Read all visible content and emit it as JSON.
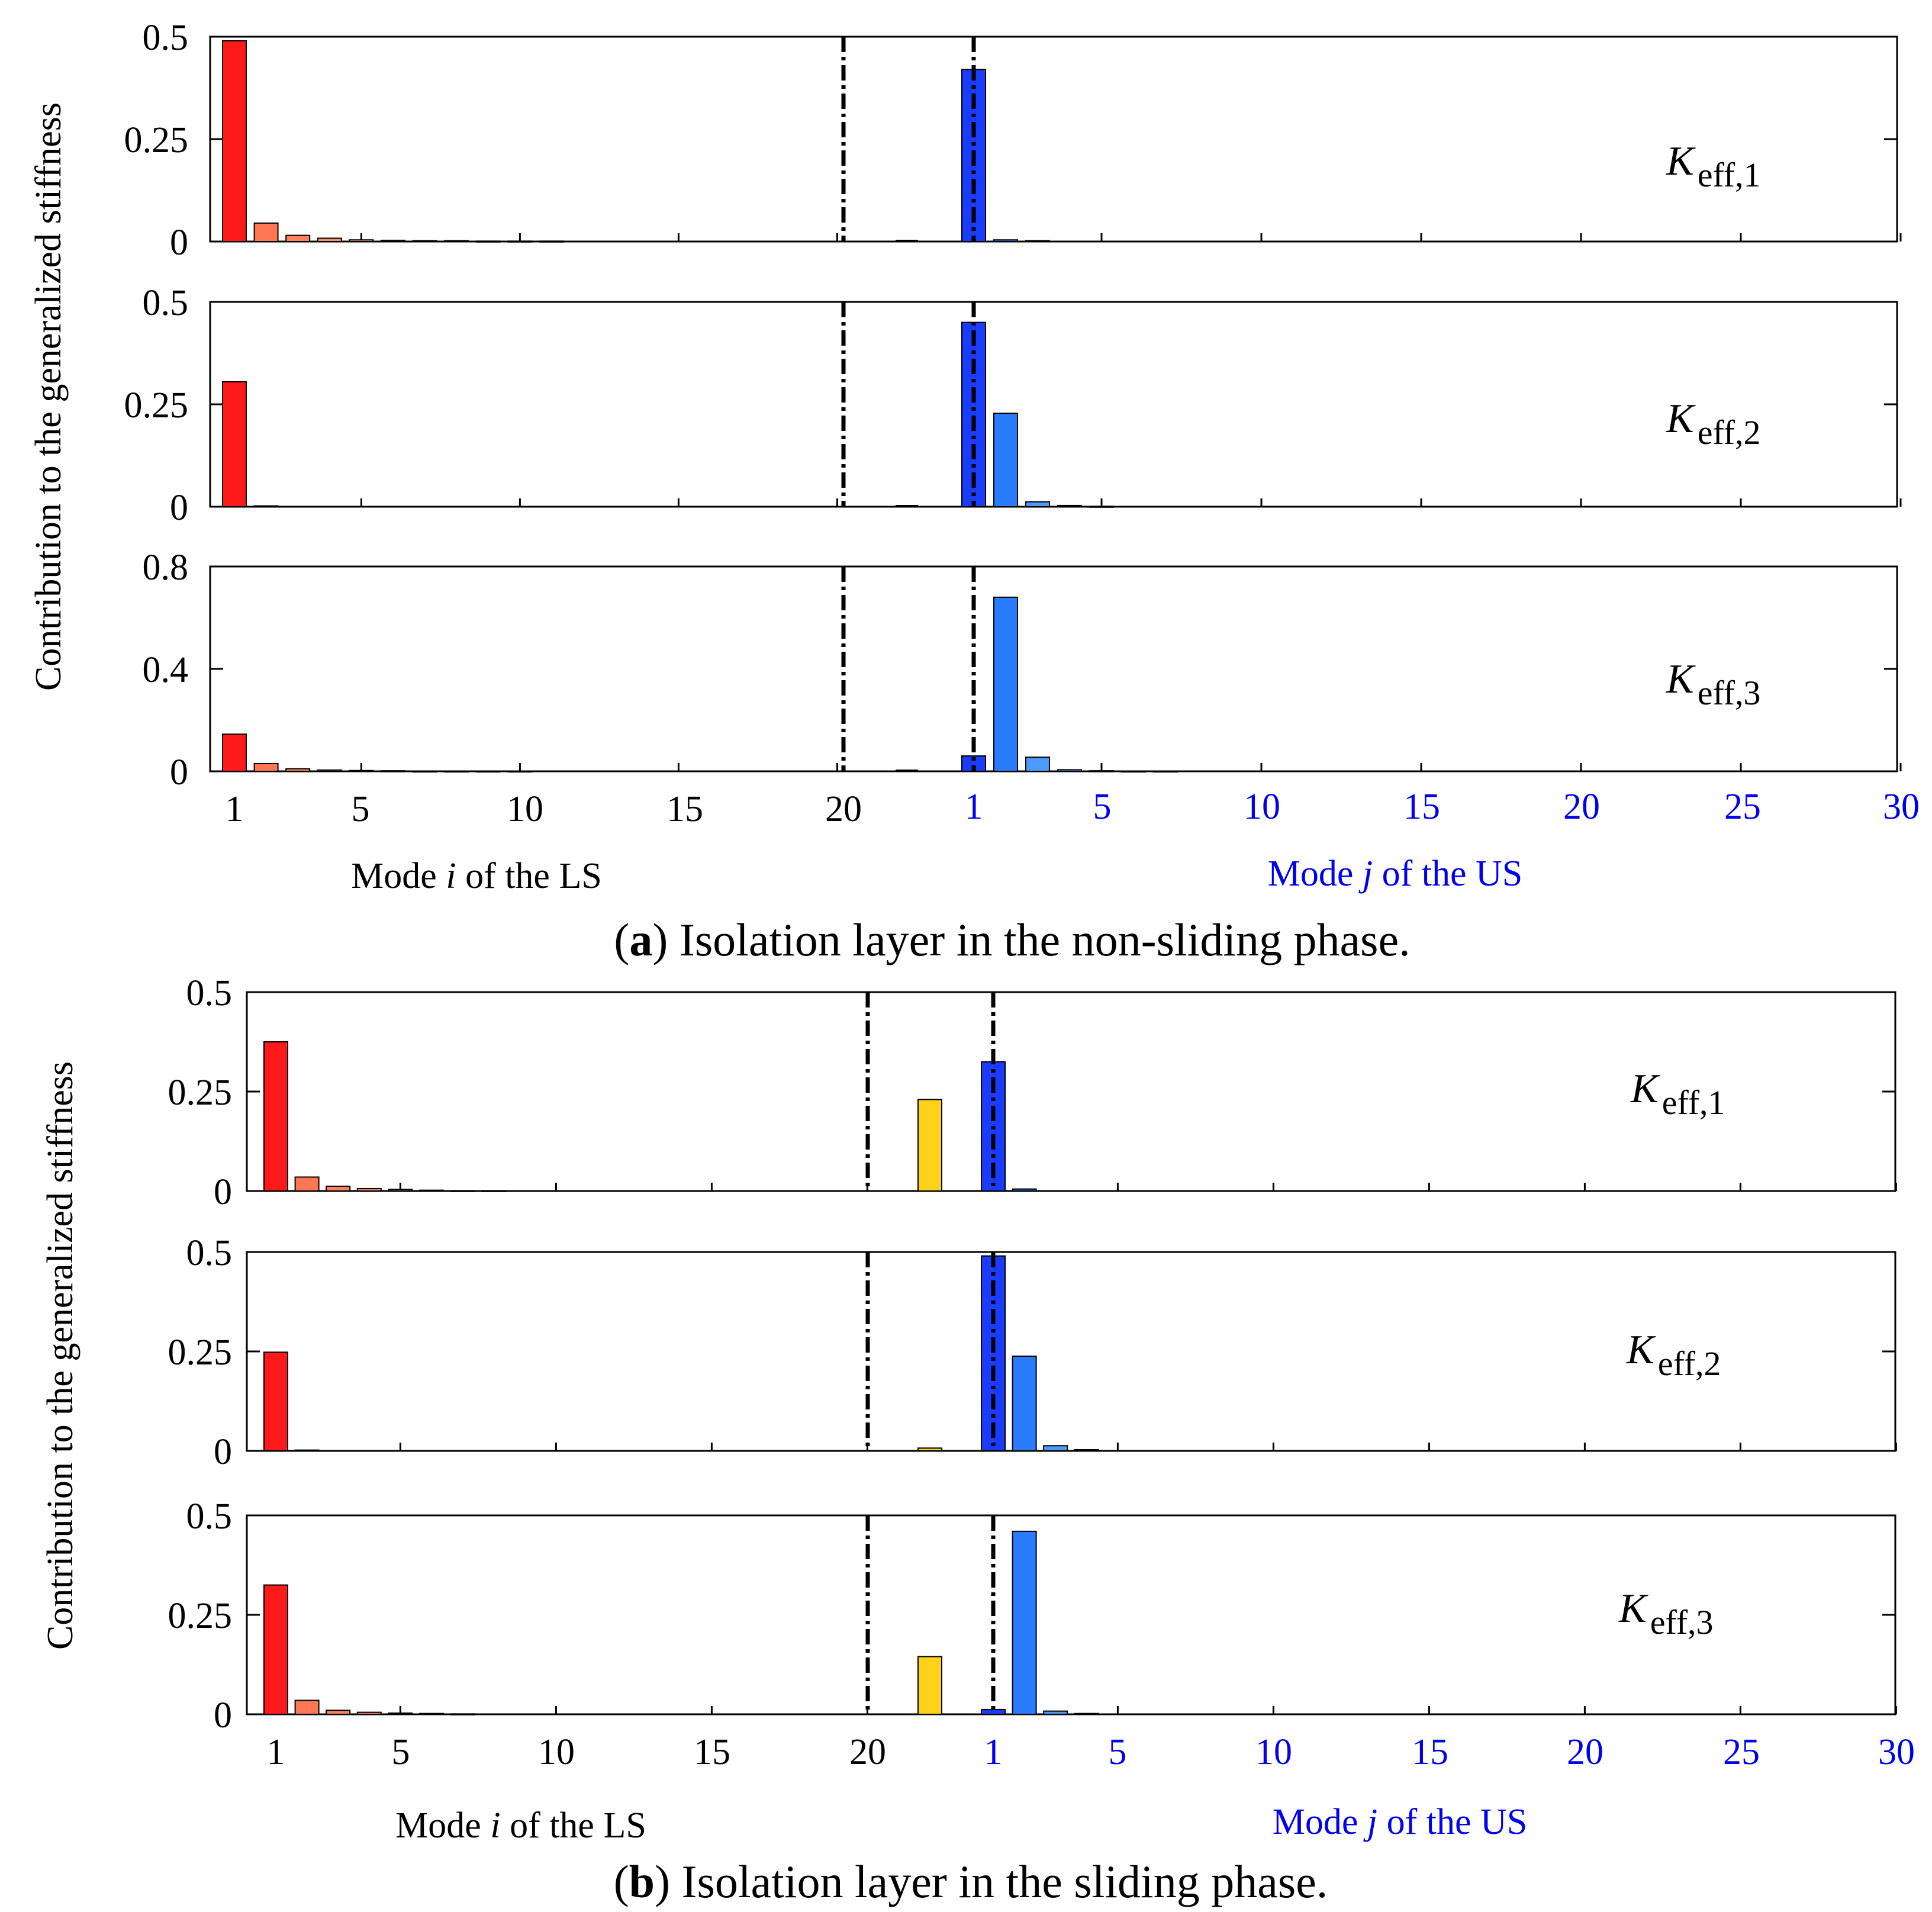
{
  "figure": {
    "ylabel": "Contribution to the generalized stiffness",
    "ls_axis_label": {
      "pre": "Mode ",
      "var": "i",
      "post": " of  the LS"
    },
    "us_axis_label": {
      "pre": "Mode ",
      "var": "j",
      "post": " of  the US"
    },
    "ls_ticks": [
      "1",
      "5",
      "10",
      "15",
      "20"
    ],
    "us_ticks": [
      "1",
      "5",
      "10",
      "15",
      "20",
      "25",
      "30"
    ],
    "colors": {
      "ls_bar": "#ff1a1a",
      "ls_bar_fade": "#ff7755",
      "iso_bar": "#ffd21a",
      "us_bar": "#1a3cff",
      "us_bar_light": "#2a7cff",
      "us_text": "#0000ee",
      "divider": "#000000"
    }
  },
  "panels": [
    {
      "caption": {
        "letter": "a",
        "text": ") Isolation layer in the non-sliding phase."
      },
      "has_isolation": false,
      "subplots": [
        {
          "k": "K",
          "sub": "eff,1",
          "yticks": [
            "0.5",
            "0.25",
            "0"
          ],
          "ls": [
            0.49,
            0.045,
            0.015,
            0.008,
            0.004,
            0.003,
            0.002,
            0.002,
            0.001,
            0.001,
            0.001
          ],
          "us": [
            0.42,
            0.004,
            0.002
          ]
        },
        {
          "k": "K",
          "sub": "eff,2",
          "yticks": [
            "0.5",
            "0.25",
            "0"
          ],
          "ls": [
            0.305,
            0.002
          ],
          "us": [
            0.45,
            0.228,
            0.012,
            0.003,
            0.001
          ]
        },
        {
          "k": "K",
          "sub": "eff,3",
          "yticks": [
            "0.8",
            "0.4",
            "0"
          ],
          "ls": [
            0.145,
            0.03,
            0.01,
            0.005,
            0.003,
            0.002,
            0.001,
            0.001,
            0.001,
            0.001
          ],
          "us": [
            0.06,
            0.68,
            0.055,
            0.006,
            0.002,
            0.001,
            0.001
          ]
        }
      ]
    },
    {
      "caption": {
        "letter": "b",
        "text": ") Isolation layer in the sliding phase."
      },
      "has_isolation": true,
      "subplots": [
        {
          "k": "K",
          "sub": "eff,1",
          "yticks": [
            "0.5",
            "0.25",
            "0"
          ],
          "ls": [
            0.375,
            0.035,
            0.012,
            0.006,
            0.004,
            0.002,
            0.001,
            0.001
          ],
          "iso": 0.23,
          "us": [
            0.325,
            0.005
          ]
        },
        {
          "k": "K",
          "sub": "eff,2",
          "yticks": [
            "0.5",
            "0.25",
            "0"
          ],
          "ls": [
            0.248,
            0.002
          ],
          "iso": 0.007,
          "us": [
            0.49,
            0.238,
            0.013,
            0.003
          ]
        },
        {
          "k": "K",
          "sub": "eff,3",
          "yticks": [
            "0.5",
            "0.25",
            "0"
          ],
          "ls": [
            0.325,
            0.035,
            0.01,
            0.005,
            0.003,
            0.002,
            0.001
          ],
          "iso": 0.145,
          "us": [
            0.012,
            0.46,
            0.008,
            0.002
          ]
        }
      ]
    }
  ],
  "chart_data": [
    {
      "type": "bar",
      "title": "(a) Isolation layer in the non-sliding phase.",
      "ylabel": "Contribution to the generalized stiffness",
      "xlabel_ls": "Mode i of the LS",
      "xlabel_us": "Mode j of the US",
      "series": [
        {
          "name": "K_eff,1",
          "ylim": [
            0,
            0.5
          ],
          "ls_modes": [
            1,
            2,
            3,
            4,
            5,
            6,
            7,
            8,
            9,
            10,
            11
          ],
          "ls_values": [
            0.49,
            0.045,
            0.015,
            0.008,
            0.004,
            0.003,
            0.002,
            0.002,
            0.001,
            0.001,
            0.001
          ],
          "us_modes": [
            1,
            2,
            3
          ],
          "us_values": [
            0.42,
            0.004,
            0.002
          ]
        },
        {
          "name": "K_eff,2",
          "ylim": [
            0,
            0.5
          ],
          "ls_modes": [
            1,
            2
          ],
          "ls_values": [
            0.305,
            0.002
          ],
          "us_modes": [
            1,
            2,
            3,
            4,
            5
          ],
          "us_values": [
            0.45,
            0.228,
            0.012,
            0.003,
            0.001
          ]
        },
        {
          "name": "K_eff,3",
          "ylim": [
            0,
            0.8
          ],
          "ls_modes": [
            1,
            2,
            3,
            4,
            5,
            6,
            7,
            8,
            9,
            10
          ],
          "ls_values": [
            0.145,
            0.03,
            0.01,
            0.005,
            0.003,
            0.002,
            0.001,
            0.001,
            0.001,
            0.001
          ],
          "us_modes": [
            1,
            2,
            3,
            4,
            5,
            6,
            7
          ],
          "us_values": [
            0.06,
            0.68,
            0.055,
            0.006,
            0.002,
            0.001,
            0.001
          ]
        }
      ]
    },
    {
      "type": "bar",
      "title": "(b) Isolation layer in the sliding phase.",
      "ylabel": "Contribution to the generalized stiffness",
      "xlabel_ls": "Mode i of the LS",
      "xlabel_us": "Mode j of the US",
      "series": [
        {
          "name": "K_eff,1",
          "ylim": [
            0,
            0.5
          ],
          "ls_modes": [
            1,
            2,
            3,
            4,
            5,
            6,
            7,
            8
          ],
          "ls_values": [
            0.375,
            0.035,
            0.012,
            0.006,
            0.004,
            0.002,
            0.001,
            0.001
          ],
          "isolation_value": 0.23,
          "us_modes": [
            1,
            2
          ],
          "us_values": [
            0.325,
            0.005
          ]
        },
        {
          "name": "K_eff,2",
          "ylim": [
            0,
            0.5
          ],
          "ls_modes": [
            1,
            2
          ],
          "ls_values": [
            0.248,
            0.002
          ],
          "isolation_value": 0.007,
          "us_modes": [
            1,
            2,
            3,
            4
          ],
          "us_values": [
            0.49,
            0.238,
            0.013,
            0.003
          ]
        },
        {
          "name": "K_eff,3",
          "ylim": [
            0,
            0.5
          ],
          "ls_modes": [
            1,
            2,
            3,
            4,
            5,
            6,
            7
          ],
          "ls_values": [
            0.325,
            0.035,
            0.01,
            0.005,
            0.003,
            0.002,
            0.001
          ],
          "isolation_value": 0.145,
          "us_modes": [
            1,
            2,
            3,
            4
          ],
          "us_values": [
            0.012,
            0.46,
            0.008,
            0.002
          ]
        }
      ]
    }
  ]
}
